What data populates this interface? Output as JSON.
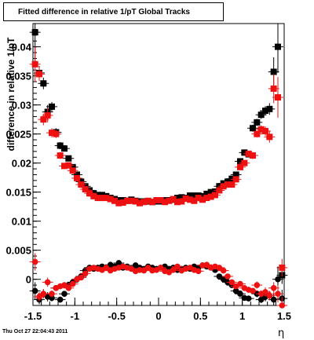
{
  "title": "Fitted difference in relative 1/pT  Global Tracks",
  "timestamp": "Thu Oct 27 22:04:43 2011",
  "chart_data": {
    "type": "scatter",
    "title": "Fitted difference in relative 1/pT  Global Tracks",
    "xlabel": "η",
    "ylabel": "difference in relative 1/pT",
    "xlim": [
      -1.5,
      1.5
    ],
    "ylim": [
      -0.0045,
      0.044
    ],
    "x_ticks": [
      -1.5,
      -1,
      -0.5,
      0,
      0.5,
      1,
      1.5
    ],
    "x_tick_labels": [
      "-1.5",
      "-1",
      "-0.5",
      "0",
      "0.5",
      "1",
      "1.5"
    ],
    "y_ticks": [
      0,
      0.005,
      0.01,
      0.015,
      0.02,
      0.025,
      0.03,
      0.035,
      0.04
    ],
    "y_tick_labels": [
      "0",
      "0.005",
      "0.01",
      "0.015",
      "0.02",
      "0.025",
      "0.03",
      "0.035",
      "0.04"
    ],
    "grid": false,
    "legend": "none",
    "series": [
      {
        "color": "#000000",
        "marker": "square",
        "x": [
          -1.475,
          -1.425,
          -1.375,
          -1.325,
          -1.275,
          -1.225,
          -1.175,
          -1.125,
          -1.075,
          -1.025,
          -0.975,
          -0.925,
          -0.875,
          -0.825,
          -0.775,
          -0.725,
          -0.675,
          -0.625,
          -0.575,
          -0.525,
          -0.475,
          -0.425,
          -0.375,
          -0.325,
          -0.275,
          -0.225,
          -0.175,
          -0.125,
          -0.075,
          -0.025,
          0.025,
          0.075,
          0.125,
          0.175,
          0.225,
          0.275,
          0.325,
          0.375,
          0.425,
          0.475,
          0.525,
          0.575,
          0.625,
          0.675,
          0.725,
          0.775,
          0.825,
          0.875,
          0.925,
          0.975,
          1.025,
          1.075,
          1.125,
          1.175,
          1.225,
          1.275,
          1.325,
          1.375,
          1.425,
          1.475
        ],
        "y": [
          0.0425,
          0.0355,
          0.0337,
          0.0288,
          0.0297,
          0.0253,
          0.023,
          0.0225,
          0.0208,
          0.0193,
          0.018,
          0.0168,
          0.016,
          0.0153,
          0.0148,
          0.0145,
          0.0145,
          0.0143,
          0.014,
          0.0138,
          0.0136,
          0.0136,
          0.0135,
          0.0137,
          0.0135,
          0.0134,
          0.0134,
          0.0134,
          0.0133,
          0.0134,
          0.0134,
          0.0136,
          0.0136,
          0.0137,
          0.014,
          0.0141,
          0.014,
          0.0144,
          0.0144,
          0.0144,
          0.0143,
          0.0147,
          0.015,
          0.0151,
          0.016,
          0.0165,
          0.0168,
          0.0173,
          0.018,
          0.0203,
          0.0218,
          0.0215,
          0.026,
          0.027,
          0.0283,
          0.029,
          0.0293,
          0.0357,
          0.04,
          0.0007
        ],
        "yerr": [
          0.005,
          0.0012,
          0.001,
          0.0012,
          0.0008,
          0.0007,
          0.0006,
          0.0005,
          0.0005,
          0.0004,
          0.0004,
          0.0004,
          0.0004,
          0.0004,
          0.0004,
          0.0004,
          0.0004,
          0.0004,
          0.0004,
          0.0004,
          0.0004,
          0.0004,
          0.0004,
          0.0004,
          0.0004,
          0.0004,
          0.0004,
          0.0004,
          0.0004,
          0.0004,
          0.0004,
          0.0004,
          0.0004,
          0.0004,
          0.0004,
          0.0004,
          0.0004,
          0.0004,
          0.0004,
          0.0004,
          0.0004,
          0.0004,
          0.0004,
          0.0004,
          0.0004,
          0.0004,
          0.0004,
          0.0004,
          0.0004,
          0.0005,
          0.0005,
          0.0005,
          0.0006,
          0.0006,
          0.0007,
          0.0008,
          0.001,
          0.0025,
          0.0045,
          0.0015
        ]
      },
      {
        "color": "#ee1111",
        "marker": "square",
        "x": [
          -1.475,
          -1.425,
          -1.375,
          -1.325,
          -1.275,
          -1.225,
          -1.175,
          -1.125,
          -1.075,
          -1.025,
          -0.975,
          -0.925,
          -0.875,
          -0.825,
          -0.775,
          -0.725,
          -0.675,
          -0.625,
          -0.575,
          -0.525,
          -0.475,
          -0.425,
          -0.375,
          -0.325,
          -0.275,
          -0.225,
          -0.175,
          -0.125,
          -0.075,
          -0.025,
          0.025,
          0.075,
          0.125,
          0.175,
          0.225,
          0.275,
          0.325,
          0.375,
          0.425,
          0.475,
          0.525,
          0.575,
          0.625,
          0.675,
          0.725,
          0.775,
          0.825,
          0.875,
          0.925,
          0.975,
          1.025,
          1.075,
          1.125,
          1.175,
          1.225,
          1.275,
          1.325,
          1.375,
          1.425,
          1.475
        ],
        "y": [
          0.037,
          0.0353,
          0.0275,
          0.0282,
          0.0252,
          0.025,
          0.0213,
          0.0195,
          0.0196,
          0.0187,
          0.0174,
          0.0163,
          0.0155,
          0.0148,
          0.0143,
          0.014,
          0.014,
          0.014,
          0.0138,
          0.0135,
          0.0131,
          0.0132,
          0.0135,
          0.0135,
          0.0134,
          0.0131,
          0.0133,
          0.0135,
          0.0133,
          0.0136,
          0.0136,
          0.0133,
          0.0135,
          0.0138,
          0.0133,
          0.0134,
          0.0139,
          0.0137,
          0.0135,
          0.014,
          0.0137,
          0.014,
          0.0142,
          0.0145,
          0.0153,
          0.016,
          0.0163,
          0.0163,
          0.0172,
          0.0193,
          0.02,
          0.0216,
          0.0213,
          0.025,
          0.0258,
          0.0255,
          0.0245,
          0.0328,
          0.0313,
          0.002
        ],
        "yerr": [
          0.003,
          0.0012,
          0.001,
          0.0012,
          0.0008,
          0.0007,
          0.0006,
          0.0005,
          0.0005,
          0.0004,
          0.0004,
          0.0004,
          0.0004,
          0.0004,
          0.0004,
          0.0004,
          0.0004,
          0.0004,
          0.0004,
          0.0004,
          0.0004,
          0.0004,
          0.0004,
          0.0004,
          0.0004,
          0.0004,
          0.0004,
          0.0004,
          0.0004,
          0.0004,
          0.0004,
          0.0004,
          0.0004,
          0.0004,
          0.0004,
          0.0004,
          0.0004,
          0.0004,
          0.0004,
          0.0004,
          0.0004,
          0.0004,
          0.0004,
          0.0004,
          0.0004,
          0.0004,
          0.0004,
          0.0004,
          0.0004,
          0.0005,
          0.0005,
          0.0005,
          0.0006,
          0.0006,
          0.0007,
          0.0008,
          0.001,
          0.0025,
          0.0035,
          0.0015
        ]
      },
      {
        "color": "#000000",
        "marker": "circle",
        "x": [
          -1.475,
          -1.425,
          -1.375,
          -1.325,
          -1.275,
          -1.225,
          -1.175,
          -1.125,
          -1.075,
          -1.025,
          -0.975,
          -0.925,
          -0.875,
          -0.825,
          -0.775,
          -0.725,
          -0.675,
          -0.625,
          -0.575,
          -0.525,
          -0.475,
          -0.425,
          -0.375,
          -0.325,
          -0.275,
          -0.225,
          -0.175,
          -0.125,
          -0.075,
          -0.025,
          0.025,
          0.075,
          0.125,
          0.175,
          0.225,
          0.275,
          0.325,
          0.375,
          0.425,
          0.475,
          0.525,
          0.575,
          0.625,
          0.675,
          0.725,
          0.775,
          0.825,
          0.875,
          0.925,
          0.975,
          1.025,
          1.075,
          1.125,
          1.175,
          1.225,
          1.275,
          1.325,
          1.375,
          1.425,
          1.475
        ],
        "y": [
          -0.002,
          -0.0035,
          -0.0025,
          -0.003,
          -0.0032,
          -0.0015,
          -0.0035,
          -0.0025,
          -0.001,
          -0.0005,
          0.0,
          0.0005,
          0.0015,
          0.002,
          0.0018,
          0.002,
          0.0022,
          0.002,
          0.0025,
          0.0022,
          0.0028,
          0.002,
          0.0022,
          0.0018,
          0.0024,
          0.002,
          0.0018,
          0.0022,
          0.002,
          0.0018,
          0.002,
          0.0022,
          0.0018,
          0.002,
          0.0016,
          0.0018,
          0.002,
          0.0018,
          0.0022,
          0.002,
          0.0024,
          0.0022,
          0.002,
          0.0016,
          0.0005,
          0.0,
          -0.0005,
          -0.001,
          -0.002,
          -0.0025,
          -0.0032,
          -0.0033,
          -0.002,
          -0.0025,
          -0.0035,
          -0.003,
          -0.0028,
          -0.0035,
          0.0,
          -0.0033
        ],
        "yerr": [
          0.0015,
          0.0008,
          0.0008,
          0.0008,
          0.0006,
          0.0005,
          0.0005,
          0.0004,
          0.0004,
          0.0004,
          0.0003,
          0.0003,
          0.0003,
          0.0003,
          0.0003,
          0.0003,
          0.0003,
          0.0003,
          0.0003,
          0.0003,
          0.0003,
          0.0003,
          0.0003,
          0.0003,
          0.0003,
          0.0003,
          0.0003,
          0.0003,
          0.0003,
          0.0003,
          0.0003,
          0.0003,
          0.0003,
          0.0003,
          0.0003,
          0.0003,
          0.0003,
          0.0003,
          0.0003,
          0.0003,
          0.0003,
          0.0003,
          0.0003,
          0.0003,
          0.0003,
          0.0003,
          0.0003,
          0.0003,
          0.0004,
          0.0004,
          0.0004,
          0.0005,
          0.0005,
          0.0006,
          0.0006,
          0.0008,
          0.0008,
          0.001,
          0.0022,
          0.0015
        ]
      },
      {
        "color": "#ee1111",
        "marker": "circle",
        "x": [
          -1.475,
          -1.425,
          -1.375,
          -1.325,
          -1.275,
          -1.225,
          -1.175,
          -1.125,
          -1.075,
          -1.025,
          -0.975,
          -0.925,
          -0.875,
          -0.825,
          -0.775,
          -0.725,
          -0.675,
          -0.625,
          -0.575,
          -0.525,
          -0.475,
          -0.425,
          -0.375,
          -0.325,
          -0.275,
          -0.225,
          -0.175,
          -0.125,
          -0.075,
          -0.025,
          0.025,
          0.075,
          0.125,
          0.175,
          0.225,
          0.275,
          0.325,
          0.375,
          0.425,
          0.475,
          0.525,
          0.575,
          0.625,
          0.675,
          0.725,
          0.775,
          0.825,
          0.875,
          0.925,
          0.975,
          1.025,
          1.075,
          1.125,
          1.175,
          1.225,
          1.275,
          1.325,
          1.375,
          1.425,
          1.475
        ],
        "y": [
          0.003,
          -0.003,
          -0.0025,
          -0.0005,
          -0.0025,
          -0.0015,
          -0.0012,
          -0.001,
          -0.0015,
          -0.0008,
          0.0,
          0.0003,
          0.001,
          0.0018,
          0.002,
          0.0018,
          0.0016,
          0.002,
          0.0015,
          0.0018,
          0.002,
          0.0022,
          0.002,
          0.0018,
          0.0014,
          0.0016,
          0.0015,
          0.002,
          0.0015,
          0.0016,
          0.002,
          0.0014,
          0.0012,
          0.0016,
          0.0022,
          0.0015,
          0.0018,
          0.002,
          0.0016,
          0.0014,
          0.0024,
          0.0025,
          0.002,
          0.0022,
          0.002,
          0.0015,
          0.0005,
          -0.0005,
          -0.0012,
          -0.0008,
          -0.0015,
          -0.0018,
          -0.002,
          -0.001,
          -0.0025,
          -0.0022,
          -0.0028,
          -0.0015,
          -0.0025,
          -0.0045
        ],
        "yerr": [
          0.0015,
          0.0008,
          0.0008,
          0.0008,
          0.0006,
          0.0005,
          0.0005,
          0.0004,
          0.0004,
          0.0004,
          0.0003,
          0.0003,
          0.0003,
          0.0003,
          0.0003,
          0.0003,
          0.0003,
          0.0003,
          0.0003,
          0.0003,
          0.0003,
          0.0003,
          0.0003,
          0.0003,
          0.0003,
          0.0003,
          0.0003,
          0.0003,
          0.0003,
          0.0003,
          0.0003,
          0.0003,
          0.0003,
          0.0003,
          0.0003,
          0.0003,
          0.0003,
          0.0003,
          0.0003,
          0.0003,
          0.0003,
          0.0003,
          0.0003,
          0.0003,
          0.0003,
          0.0003,
          0.0003,
          0.0003,
          0.0004,
          0.0004,
          0.0004,
          0.0005,
          0.0005,
          0.0006,
          0.0006,
          0.0008,
          0.0008,
          0.001,
          0.0015,
          0.0015
        ]
      }
    ]
  }
}
